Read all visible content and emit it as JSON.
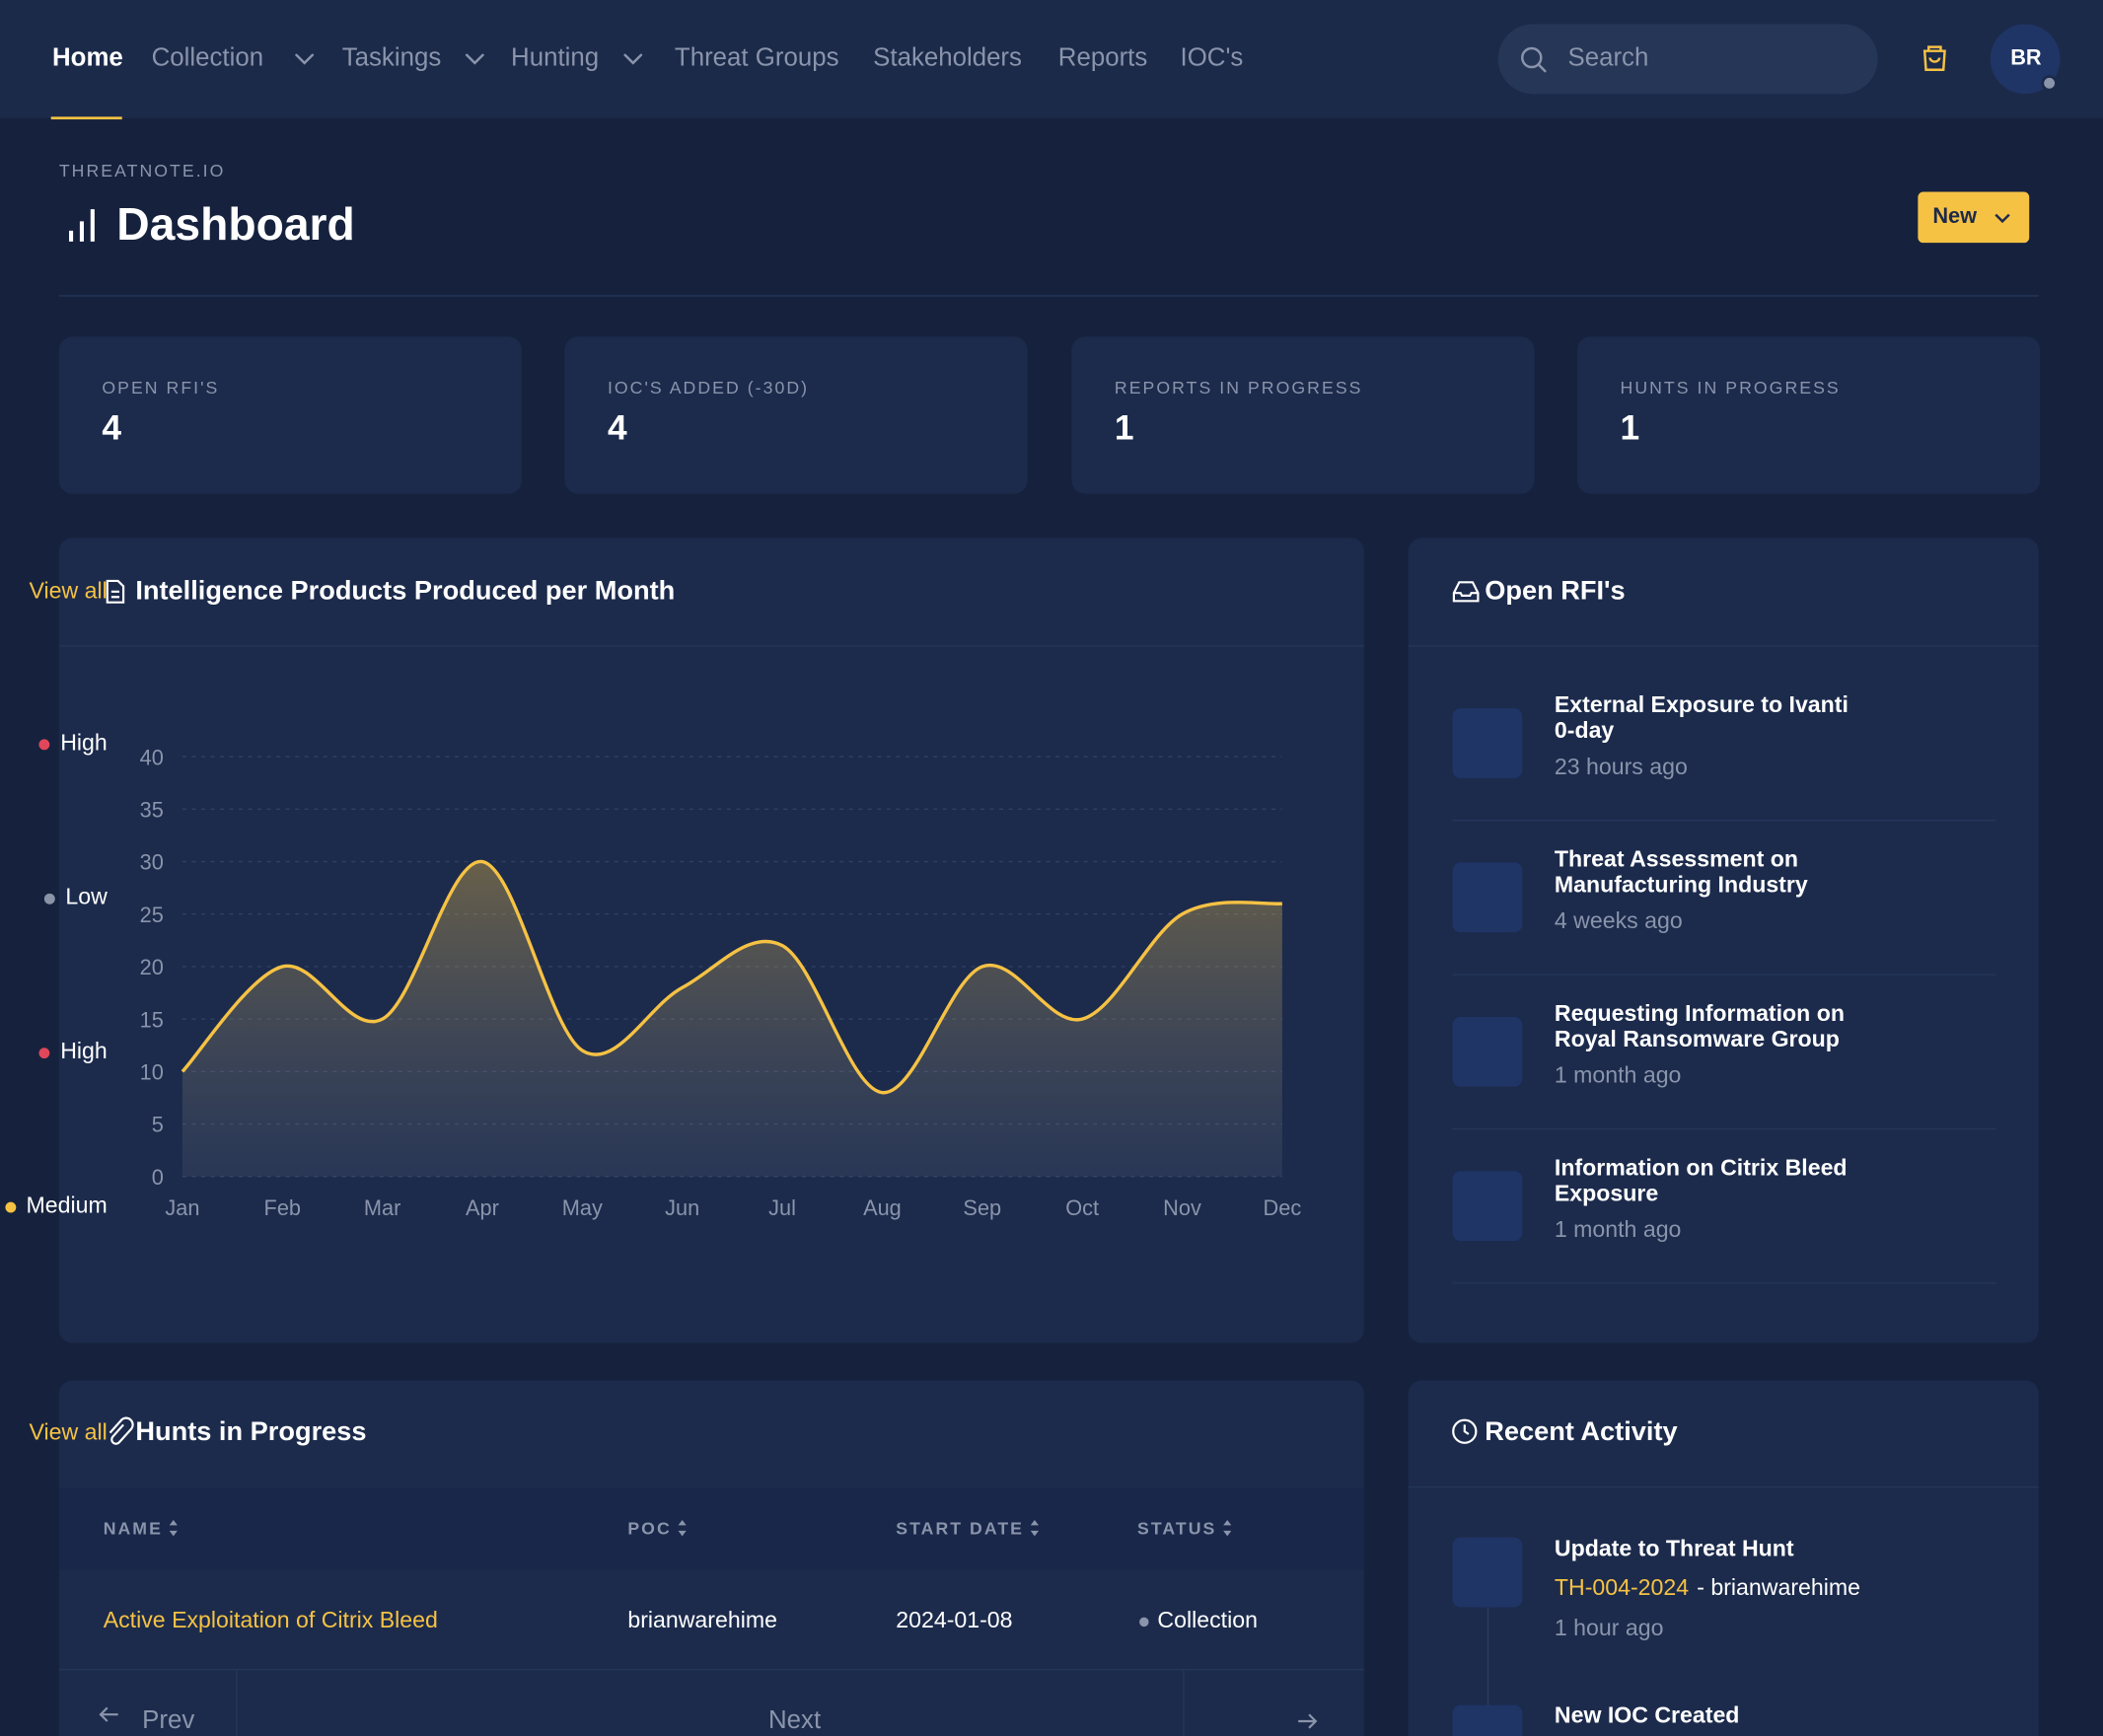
{
  "nav": {
    "items": [
      "Home",
      "Collection",
      "Taskings",
      "Hunting",
      "Threat Groups",
      "Stakeholders",
      "Reports",
      "IOC's"
    ],
    "search": "Search",
    "avatar": "BR"
  },
  "header": {
    "eyebrow": "THREATNOTE.IO",
    "title": "Dashboard",
    "button": "New"
  },
  "stats": [
    {
      "label": "OPEN RFI'S",
      "value": "4"
    },
    {
      "label": "IOC'S ADDED (-30D)",
      "value": "4"
    },
    {
      "label": "REPORTS IN PROGRESS",
      "value": "1"
    },
    {
      "label": "HUNTS IN PROGRESS",
      "value": "1"
    }
  ],
  "chart_data": {
    "type": "line",
    "title": "Intelligence Products Produced per Month",
    "categories": [
      "Jan",
      "Feb",
      "Mar",
      "Apr",
      "May",
      "Jun",
      "Jul",
      "Aug",
      "Sep",
      "Oct",
      "Nov",
      "Dec"
    ],
    "values": [
      10,
      20,
      15,
      30,
      12,
      18,
      22,
      8,
      20,
      15,
      25,
      26
    ],
    "color": "#f6c244",
    "area": true,
    "ylim": [
      0,
      40
    ],
    "yticks": [
      0,
      5,
      10,
      15,
      20,
      25,
      30,
      35,
      40
    ],
    "grid": true
  },
  "rfis": {
    "title": "Open RFI's",
    "view_all": "View all",
    "items": [
      {
        "title": "External Exposure to Ivanti 0-day",
        "time": "23 hours ago",
        "priority": "High",
        "dot_color": "#e0475a"
      },
      {
        "title": "Threat Assessment on Manufacturing Industry",
        "time": "4 weeks ago",
        "priority": "Low",
        "dot_color": "#8a94a8"
      },
      {
        "title": "Requesting Information on Royal Ransomware Group",
        "time": "1 month ago",
        "priority": "High",
        "dot_color": "#e0475a"
      },
      {
        "title": "Information on Citrix Bleed Exposure",
        "time": "1 month ago",
        "priority": "Medium",
        "dot_color": "#f6c244"
      }
    ]
  },
  "hunts": {
    "title": "Hunts in Progress",
    "columns": [
      "NAME",
      "POC",
      "START DATE",
      "STATUS"
    ],
    "rows": [
      [
        "Active Exploitation of Citrix Bleed",
        "brianwarehime",
        "2024-01-08",
        "Collection"
      ]
    ],
    "prev": "Prev",
    "next": "Next"
  },
  "activity": {
    "title": "Recent Activity",
    "view_all": "View all",
    "items": [
      {
        "title": "Update to Threat Hunt",
        "ref": "TH-004-2024",
        "detail": "- brianwarehime",
        "time": "1 hour ago"
      },
      {
        "title": "New IOC Created"
      }
    ]
  }
}
